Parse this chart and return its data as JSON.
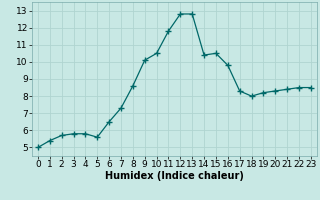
{
  "x": [
    0,
    1,
    2,
    3,
    4,
    5,
    6,
    7,
    8,
    9,
    10,
    11,
    12,
    13,
    14,
    15,
    16,
    17,
    18,
    19,
    20,
    21,
    22,
    23
  ],
  "y": [
    5.0,
    5.4,
    5.7,
    5.8,
    5.8,
    5.6,
    6.5,
    7.3,
    8.6,
    10.1,
    10.5,
    11.8,
    12.8,
    12.8,
    10.4,
    10.5,
    9.8,
    8.3,
    8.0,
    8.2,
    8.3,
    8.4,
    8.5,
    8.5
  ],
  "line_color": "#006868",
  "marker": "+",
  "marker_size": 4,
  "xlabel": "Humidex (Indice chaleur)",
  "xlim": [
    -0.5,
    23.5
  ],
  "ylim": [
    4.5,
    13.5
  ],
  "yticks": [
    5,
    6,
    7,
    8,
    9,
    10,
    11,
    12,
    13
  ],
  "xticks": [
    0,
    1,
    2,
    3,
    4,
    5,
    6,
    7,
    8,
    9,
    10,
    11,
    12,
    13,
    14,
    15,
    16,
    17,
    18,
    19,
    20,
    21,
    22,
    23
  ],
  "bg_color": "#c8e8e4",
  "grid_color": "#b0d4d0",
  "label_fontsize": 7,
  "tick_fontsize": 6.5
}
